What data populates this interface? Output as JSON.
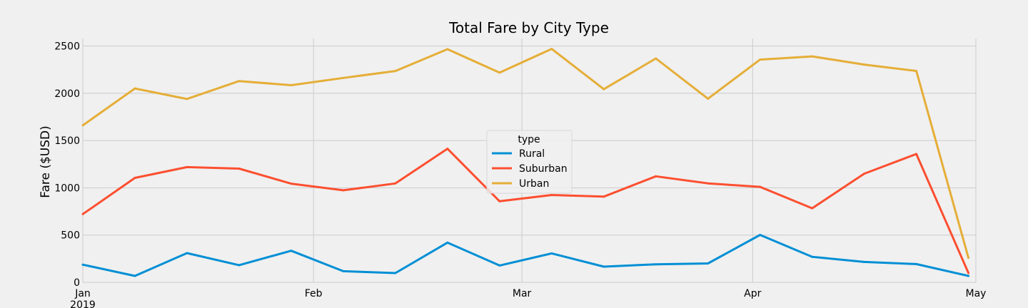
{
  "chart_data": {
    "type": "line",
    "title": "Total Fare by City Type",
    "xlabel": "",
    "ylabel": "Fare ($USD)",
    "x_type": "date",
    "xlim": [
      "2019-01-01",
      "2019-05-01"
    ],
    "ylim": [
      0,
      2580
    ],
    "x_ticks": [
      {
        "date": "2019-01-01",
        "label": "Jan",
        "sublabel": "2019"
      },
      {
        "date": "2019-02-01",
        "label": "Feb",
        "sublabel": ""
      },
      {
        "date": "2019-03-01",
        "label": "Mar",
        "sublabel": ""
      },
      {
        "date": "2019-04-01",
        "label": "Apr",
        "sublabel": ""
      },
      {
        "date": "2019-05-01",
        "label": "May",
        "sublabel": ""
      }
    ],
    "y_ticks": [
      0,
      500,
      1000,
      1500,
      2000,
      2500
    ],
    "grid": true,
    "legend": {
      "title": "type",
      "placement": "center"
    },
    "x": [
      "2019-01-01",
      "2019-01-08",
      "2019-01-15",
      "2019-01-22",
      "2019-01-29",
      "2019-02-05",
      "2019-02-12",
      "2019-02-19",
      "2019-02-26",
      "2019-03-05",
      "2019-03-12",
      "2019-03-19",
      "2019-03-26",
      "2019-04-02",
      "2019-04-09",
      "2019-04-16",
      "2019-04-23",
      "2019-04-30"
    ],
    "series": [
      {
        "name": "Rural",
        "color": "#008fd5",
        "values": [
          187,
          68,
          309,
          182,
          334,
          118,
          98,
          420,
          178,
          306,
          166,
          191,
          200,
          502,
          270,
          216,
          193,
          68
        ]
      },
      {
        "name": "Suburban",
        "color": "#fc4f30",
        "values": [
          722,
          1105,
          1219,
          1203,
          1044,
          974,
          1046,
          1414,
          858,
          924,
          907,
          1122,
          1047,
          1010,
          784,
          1150,
          1358,
          98
        ]
      },
      {
        "name": "Urban",
        "color": "#e5ae38",
        "values": [
          1661,
          2051,
          1940,
          2130,
          2086,
          2163,
          2236,
          2467,
          2219,
          2470,
          2044,
          2369,
          1943,
          2357,
          2391,
          2304,
          2237,
          258
        ]
      }
    ]
  }
}
